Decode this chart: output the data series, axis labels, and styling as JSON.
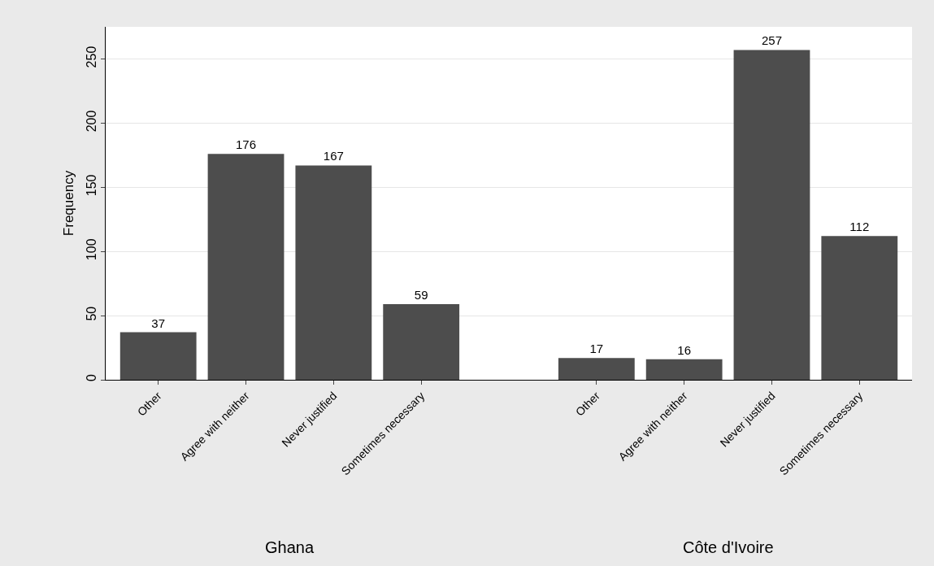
{
  "chart_data": {
    "type": "bar",
    "categories": [
      "Other",
      "Agree with neither",
      "Never justified",
      "Sometimes necessary",
      null,
      "Other",
      "Agree with neither",
      "Never justified",
      "Sometimes necessary"
    ],
    "values": [
      37,
      176,
      167,
      59,
      null,
      17,
      16,
      257,
      112
    ],
    "color": "#4d4d4d",
    "ylabel": "Frequency",
    "ylim": [
      0,
      275
    ],
    "yticks": [
      0,
      50,
      100,
      150,
      200,
      250
    ],
    "grid": "y",
    "data_labels": true,
    "annotations": [
      "Ghana",
      "Côte d'Ivoire"
    ]
  }
}
